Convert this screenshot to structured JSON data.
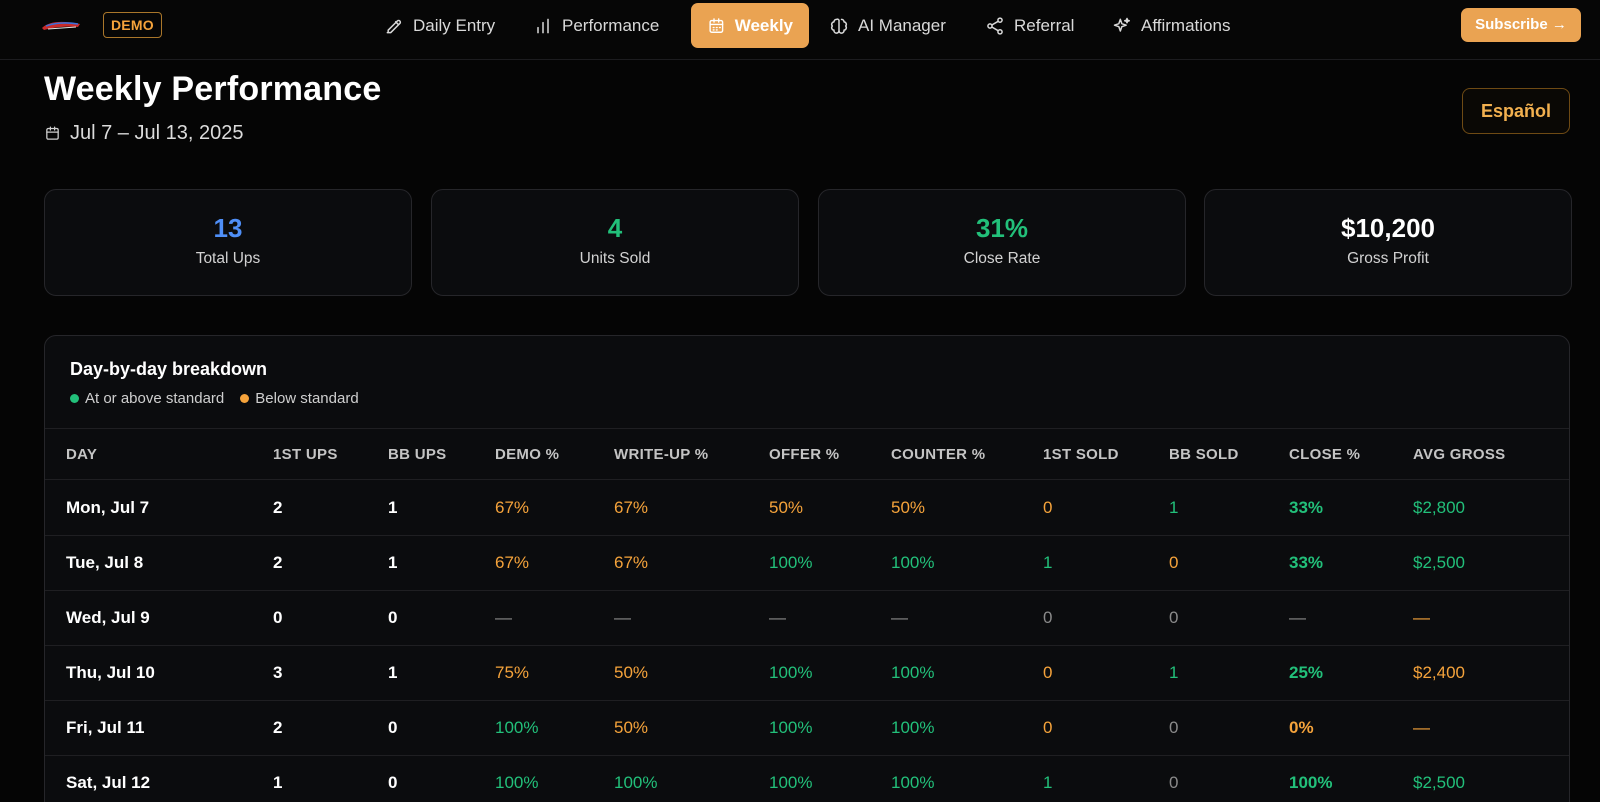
{
  "nav": {
    "demo_badge": "DEMO",
    "items": [
      {
        "label": "Daily Entry",
        "icon": "pencil-icon"
      },
      {
        "label": "Performance",
        "icon": "bar-chart-icon"
      },
      {
        "label": "Weekly",
        "icon": "calendar-icon",
        "active": true
      },
      {
        "label": "AI Manager",
        "icon": "brain-icon"
      },
      {
        "label": "Referral",
        "icon": "share-icon"
      },
      {
        "label": "Affirmations",
        "icon": "sparkles-icon"
      }
    ],
    "subscribe_label": "Subscribe →"
  },
  "header": {
    "title": "Weekly Performance",
    "date_range": "Jul 7 – Jul 13, 2025",
    "language_button": "Español"
  },
  "stats": [
    {
      "value": "13",
      "label": "Total Ups",
      "color": "#4f8ff7"
    },
    {
      "value": "4",
      "label": "Units Sold",
      "color": "#22c07a"
    },
    {
      "value": "31%",
      "label": "Close Rate",
      "color": "#22c07a"
    },
    {
      "value": "$10,200",
      "label": "Gross Profit",
      "color": "#ffffff"
    }
  ],
  "breakdown": {
    "title": "Day-by-day breakdown",
    "legend": [
      {
        "label": "At or above standard",
        "color": "#22c07a"
      },
      {
        "label": "Below standard",
        "color": "#f5a33b"
      }
    ],
    "columns": [
      "DAY",
      "1ST UPS",
      "BB UPS",
      "DEMO %",
      "WRITE-UP %",
      "OFFER %",
      "COUNTER %",
      "1ST SOLD",
      "BB SOLD",
      "CLOSE %",
      "AVG GROSS"
    ],
    "rows": [
      {
        "day": "Mon, Jul 7",
        "first_ups": "2",
        "bb_ups": "1",
        "demo": "67%",
        "writeup": "67%",
        "offer": "50%",
        "counter": "50%",
        "first_sold": "0",
        "bb_sold": "1",
        "close": "33%",
        "avg_gross": "$2,800"
      },
      {
        "day": "Tue, Jul 8",
        "first_ups": "2",
        "bb_ups": "1",
        "demo": "67%",
        "writeup": "67%",
        "offer": "100%",
        "counter": "100%",
        "first_sold": "1",
        "bb_sold": "0",
        "close": "33%",
        "avg_gross": "$2,500"
      },
      {
        "day": "Wed, Jul 9",
        "first_ups": "0",
        "bb_ups": "0",
        "demo": "—",
        "writeup": "—",
        "offer": "—",
        "counter": "—",
        "first_sold": "0",
        "bb_sold": "0",
        "close": "—",
        "avg_gross": "—"
      },
      {
        "day": "Thu, Jul 10",
        "first_ups": "3",
        "bb_ups": "1",
        "demo": "75%",
        "writeup": "50%",
        "offer": "100%",
        "counter": "100%",
        "first_sold": "0",
        "bb_sold": "1",
        "close": "25%",
        "avg_gross": "$2,400"
      },
      {
        "day": "Fri, Jul 11",
        "first_ups": "2",
        "bb_ups": "0",
        "demo": "100%",
        "writeup": "50%",
        "offer": "100%",
        "counter": "100%",
        "first_sold": "0",
        "bb_sold": "0",
        "close": "0%",
        "avg_gross": "—"
      },
      {
        "day": "Sat, Jul 12",
        "first_ups": "1",
        "bb_ups": "0",
        "demo": "100%",
        "writeup": "100%",
        "offer": "100%",
        "counter": "100%",
        "first_sold": "1",
        "bb_sold": "0",
        "close": "100%",
        "avg_gross": "$2,500"
      }
    ]
  }
}
